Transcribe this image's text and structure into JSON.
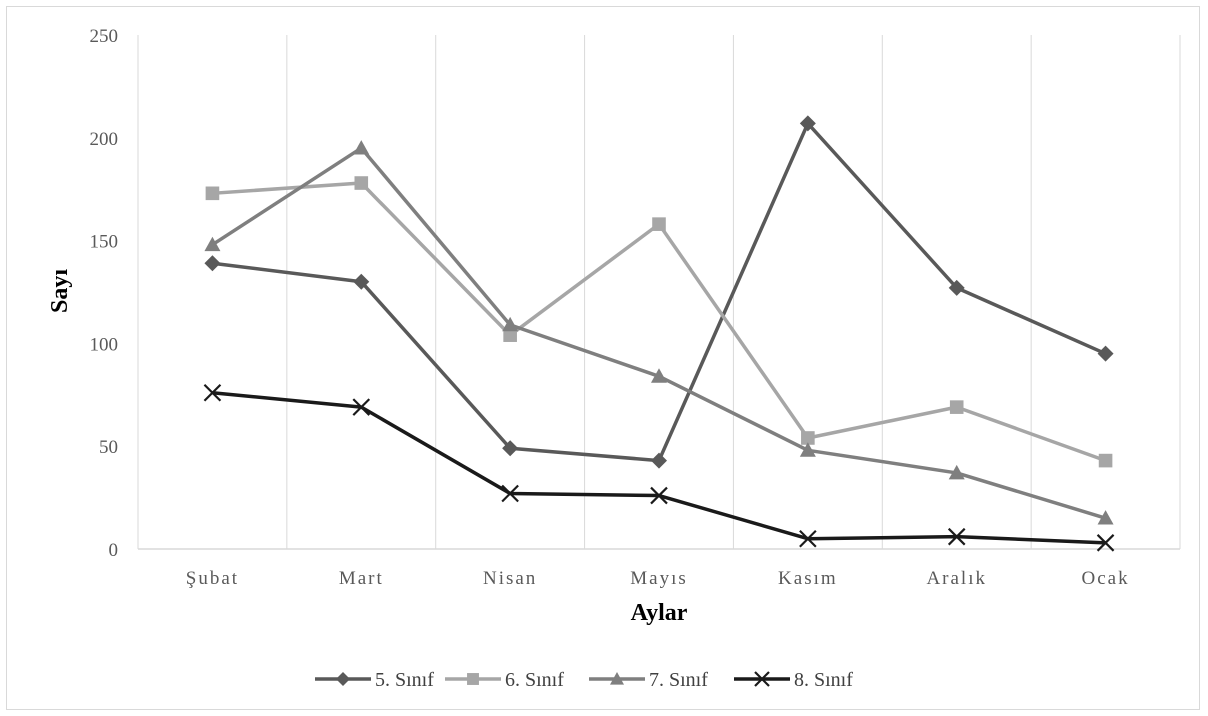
{
  "chart_data": {
    "type": "line",
    "title": "",
    "xlabel": "Aylar",
    "ylabel": "Sayı",
    "categories": [
      "Şubat",
      "Mart",
      "Nisan",
      "Mayıs",
      "Kasım",
      "Aralık",
      "Ocak"
    ],
    "ylim": [
      0,
      250
    ],
    "yticks": [
      "0",
      "50",
      "100",
      "150",
      "200",
      "250"
    ],
    "grid": "vertical",
    "legend_position": "bottom",
    "series": [
      {
        "name": "5. Sınıf",
        "values": [
          139,
          130,
          49,
          43,
          207,
          127,
          95
        ],
        "color": "#595959",
        "marker": "diamond"
      },
      {
        "name": "6. Sınıf",
        "values": [
          173,
          178,
          104,
          158,
          54,
          69,
          43
        ],
        "color": "#a6a6a6",
        "marker": "square"
      },
      {
        "name": "7. Sınıf",
        "values": [
          148,
          195,
          109,
          84,
          48,
          37,
          15
        ],
        "color": "#7f7f7f",
        "marker": "triangle"
      },
      {
        "name": "8. Sınıf",
        "values": [
          76,
          69,
          27,
          26,
          5,
          6,
          3
        ],
        "color": "#1a1a1a",
        "marker": "x"
      }
    ]
  }
}
